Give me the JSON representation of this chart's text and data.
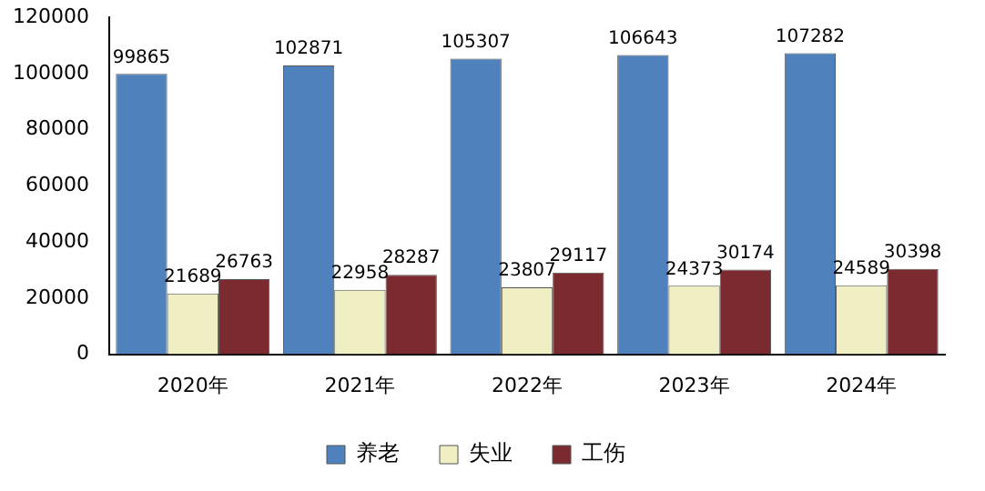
{
  "chart_data": {
    "type": "bar",
    "categories": [
      "2020年",
      "2021年",
      "2022年",
      "2023年",
      "2024年"
    ],
    "series": [
      {
        "name": "养老",
        "color": "#4f81bd",
        "values": [
          99865,
          102871,
          105307,
          106643,
          107282
        ]
      },
      {
        "name": "失业",
        "color": "#f0efc4",
        "values": [
          21689,
          22958,
          23807,
          24373,
          24589
        ]
      },
      {
        "name": "工伤",
        "color": "#7b2b2f",
        "values": [
          26763,
          28287,
          29117,
          30174,
          30398
        ]
      }
    ],
    "ylim": [
      0,
      120000
    ],
    "yticks": [
      0,
      20000,
      40000,
      60000,
      80000,
      100000,
      120000
    ],
    "grid": false,
    "legend": "bottom",
    "data_labels": true
  }
}
